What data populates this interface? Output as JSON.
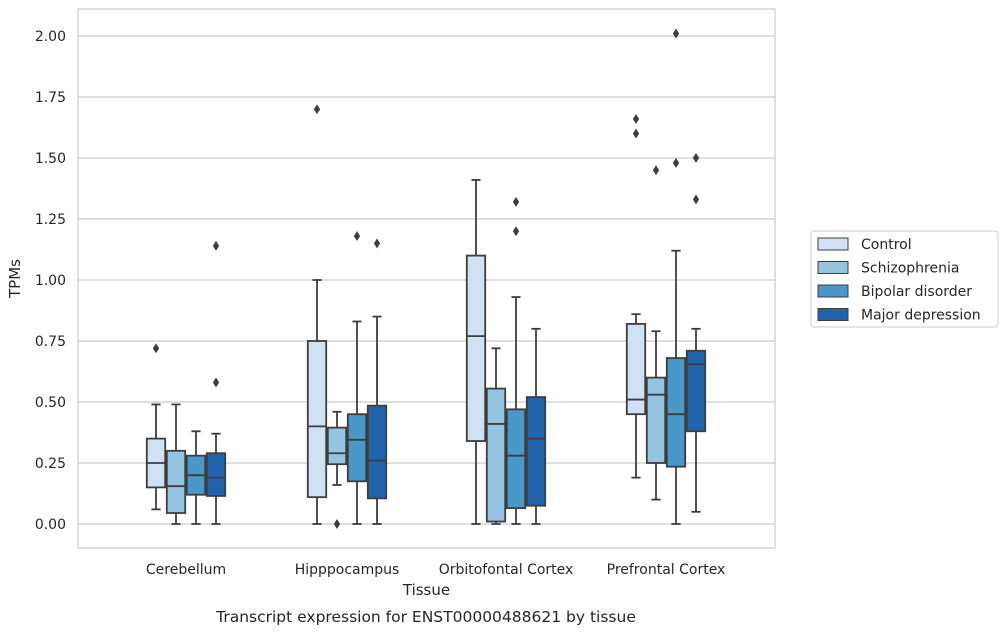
{
  "caption": "Transcript expression for ENST00000488621 by tissue",
  "chart_data": {
    "type": "boxplot",
    "xlabel": "Tissue",
    "ylabel": "TPMs",
    "ylim": [
      -0.1,
      2.12
    ],
    "yticks": [
      0.0,
      0.25,
      0.5,
      0.75,
      1.0,
      1.25,
      1.5,
      1.75,
      2.0
    ],
    "ytick_labels": [
      "0.00",
      "0.25",
      "0.50",
      "0.75",
      "1.00",
      "1.25",
      "1.50",
      "1.75",
      "2.00"
    ],
    "categories": [
      "Cerebellum",
      "Hipppocampus",
      "Orbitofontal Cortex",
      "Prefrontal Cortex"
    ],
    "grid": "horizontal",
    "legend_position": "right",
    "series": [
      {
        "name": "Control",
        "color": "#d0e1f2",
        "boxes": [
          {
            "whisker_low": 0.06,
            "q1": 0.15,
            "median": 0.25,
            "q3": 0.35,
            "whisker_high": 0.49,
            "outliers": [
              0.72
            ]
          },
          {
            "whisker_low": 0.0,
            "q1": 0.11,
            "median": 0.4,
            "q3": 0.75,
            "whisker_high": 1.0,
            "outliers": [
              1.7
            ]
          },
          {
            "whisker_low": 0.0,
            "q1": 0.34,
            "median": 0.77,
            "q3": 1.1,
            "whisker_high": 1.41,
            "outliers": []
          },
          {
            "whisker_low": 0.19,
            "q1": 0.45,
            "median": 0.51,
            "q3": 0.82,
            "whisker_high": 0.86,
            "outliers": [
              1.6,
              1.66
            ]
          }
        ]
      },
      {
        "name": "Schizophrenia",
        "color": "#94c4df",
        "boxes": [
          {
            "whisker_low": 0.0,
            "q1": 0.045,
            "median": 0.155,
            "q3": 0.3,
            "whisker_high": 0.49,
            "outliers": []
          },
          {
            "whisker_low": 0.16,
            "q1": 0.245,
            "median": 0.29,
            "q3": 0.395,
            "whisker_high": 0.46,
            "outliers": [
              0.0
            ]
          },
          {
            "whisker_low": 0.0,
            "q1": 0.01,
            "median": 0.41,
            "q3": 0.555,
            "whisker_high": 0.72,
            "outliers": []
          },
          {
            "whisker_low": 0.1,
            "q1": 0.25,
            "median": 0.53,
            "q3": 0.6,
            "whisker_high": 0.79,
            "outliers": [
              1.45
            ]
          }
        ]
      },
      {
        "name": "Bipolar disorder",
        "color": "#4a98c9",
        "boxes": [
          {
            "whisker_low": 0.0,
            "q1": 0.12,
            "median": 0.2,
            "q3": 0.28,
            "whisker_high": 0.38,
            "outliers": []
          },
          {
            "whisker_low": 0.0,
            "q1": 0.175,
            "median": 0.345,
            "q3": 0.45,
            "whisker_high": 0.83,
            "outliers": [
              1.18
            ]
          },
          {
            "whisker_low": 0.0,
            "q1": 0.065,
            "median": 0.28,
            "q3": 0.47,
            "whisker_high": 0.93,
            "outliers": [
              1.2,
              1.32
            ]
          },
          {
            "whisker_low": 0.0,
            "q1": 0.235,
            "median": 0.45,
            "q3": 0.68,
            "whisker_high": 1.12,
            "outliers": [
              1.48,
              2.01
            ]
          }
        ]
      },
      {
        "name": "Major depression",
        "color": "#2164ab",
        "boxes": [
          {
            "whisker_low": 0.0,
            "q1": 0.115,
            "median": 0.19,
            "q3": 0.29,
            "whisker_high": 0.37,
            "outliers": [
              0.58,
              1.14
            ]
          },
          {
            "whisker_low": 0.0,
            "q1": 0.105,
            "median": 0.26,
            "q3": 0.485,
            "whisker_high": 0.85,
            "outliers": [
              1.15
            ]
          },
          {
            "whisker_low": 0.0,
            "q1": 0.075,
            "median": 0.35,
            "q3": 0.52,
            "whisker_high": 0.8,
            "outliers": []
          },
          {
            "whisker_low": 0.05,
            "q1": 0.38,
            "median": 0.655,
            "q3": 0.71,
            "whisker_high": 0.8,
            "outliers": [
              1.33,
              1.5
            ]
          }
        ]
      }
    ]
  }
}
